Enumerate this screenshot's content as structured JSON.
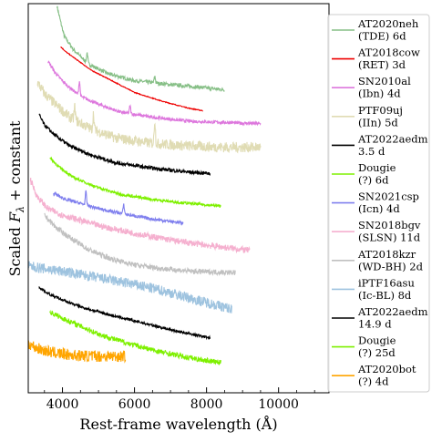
{
  "chart_data": {
    "type": "line",
    "xlabel": "Rest-frame wavelength (Å)",
    "ylabel_parts": [
      "Scaled ",
      "F",
      "λ",
      " + constant"
    ],
    "xlim": [
      3050,
      11400
    ],
    "ylim": [
      -0.3,
      14.6
    ],
    "xticks": [
      4000,
      6000,
      8000,
      10000
    ],
    "xtick_labels": [
      "4000",
      "6000",
      "8000",
      "10000"
    ],
    "yticks_shown": false,
    "grid": false,
    "legend": {
      "position": "right"
    },
    "series": [
      {
        "name": "AT2020neh (TDE) 6d",
        "label_lines": [
          "AT2020neh",
          "(TDE) 6d"
        ],
        "color": "#86bf86",
        "noise": 0.07,
        "x": [
          3850,
          3950,
          4050,
          4300,
          4700,
          5300,
          6000,
          7000,
          7800,
          8500
        ],
        "y": [
          14.5,
          13.9,
          13.35,
          12.85,
          12.3,
          11.9,
          11.65,
          11.5,
          11.4,
          11.3
        ],
        "lines": [
          {
            "x": 4686,
            "amp": 0.4
          },
          {
            "x": 6563,
            "amp": 0.25
          }
        ]
      },
      {
        "name": "AT2018cow (RET) 3d",
        "label_lines": [
          "AT2018cow",
          "(RET) 3d"
        ],
        "color": "#ee0000",
        "noise": 0.015,
        "x": [
          3950,
          4100,
          4400,
          4800,
          5300,
          6000,
          6800,
          7500,
          7900
        ],
        "y": [
          12.95,
          12.75,
          12.45,
          12.05,
          11.7,
          11.2,
          10.85,
          10.6,
          10.5
        ],
        "lines": []
      },
      {
        "name": "SN2010al (Ibn) 4d",
        "label_lines": [
          "SN2010al",
          "(Ibn) 4d"
        ],
        "color": "#dd77dd",
        "noise": 0.06,
        "x": [
          3600,
          3800,
          4100,
          4500,
          5000,
          5600,
          6500,
          7500,
          8500,
          9500
        ],
        "y": [
          12.4,
          11.95,
          11.5,
          11.05,
          10.75,
          10.45,
          10.25,
          10.1,
          10.05,
          10.0
        ],
        "lines": [
          {
            "x": 4471,
            "amp": 0.55
          },
          {
            "x": 5876,
            "amp": 0.3
          }
        ]
      },
      {
        "name": "PTF09uj (IIn) 5d",
        "label_lines": [
          "PTF09uj",
          "(IIn) 5d"
        ],
        "color": "#e0dcb4",
        "noise": 0.2,
        "x": [
          3300,
          3500,
          3800,
          4200,
          4800,
          5500,
          6500,
          7500,
          8500,
          9500
        ],
        "y": [
          11.6,
          11.15,
          10.75,
          10.25,
          9.8,
          9.45,
          9.25,
          9.15,
          9.1,
          9.1
        ],
        "lines": [
          {
            "x": 4340,
            "amp": 0.5
          },
          {
            "x": 4861,
            "amp": 0.6
          },
          {
            "x": 6563,
            "amp": 0.9
          }
        ]
      },
      {
        "name": "AT2022aedm 3.5 d",
        "label_lines": [
          "AT2022aedm",
          "3.5 d"
        ],
        "color": "#000000",
        "noise": 0.07,
        "x": [
          3350,
          3500,
          3800,
          4200,
          4800,
          5500,
          6500,
          7500,
          8100
        ],
        "y": [
          10.35,
          9.95,
          9.55,
          9.15,
          8.8,
          8.5,
          8.3,
          8.15,
          8.1
        ],
        "lines": []
      },
      {
        "name": "Dougie (?) 6d",
        "label_lines": [
          "Dougie",
          "(?) 6d"
        ],
        "color": "#7ef000",
        "noise": 0.05,
        "x": [
          3650,
          3900,
          4300,
          4900,
          5600,
          6500,
          7500,
          8400
        ],
        "y": [
          8.7,
          8.35,
          7.95,
          7.6,
          7.3,
          7.1,
          6.95,
          6.85
        ],
        "lines": []
      },
      {
        "name": "SN2021csp (Icn) 4d",
        "label_lines": [
          "SN2021csp",
          "(Icn) 4d"
        ],
        "color": "#8080ee",
        "noise": 0.06,
        "x": [
          3750,
          4000,
          4500,
          5000,
          5700,
          6500,
          7350
        ],
        "y": [
          7.35,
          7.15,
          6.95,
          6.75,
          6.55,
          6.35,
          6.2
        ],
        "lines": [
          {
            "x": 4650,
            "amp": 0.5
          },
          {
            "x": 5700,
            "amp": 0.35
          }
        ]
      },
      {
        "name": "SN2018bgv (SLSN) 11d",
        "label_lines": [
          "SN2018bgv",
          "(SLSN) 11d"
        ],
        "color": "#f5b0cf",
        "noise": 0.12,
        "x": [
          3100,
          3300,
          3600,
          4000,
          4500,
          5000,
          5500,
          6200,
          7000,
          8000,
          9200
        ],
        "y": [
          7.9,
          7.2,
          6.75,
          6.5,
          6.3,
          6.1,
          5.95,
          5.75,
          5.55,
          5.35,
          5.15
        ],
        "lines": []
      },
      {
        "name": "AT2018kzr (WD-BH) 2d",
        "label_lines": [
          "AT2018kzr",
          "(WD-BH) 2d"
        ],
        "color": "#c0c0c0",
        "noise": 0.1,
        "x": [
          3500,
          3800,
          4200,
          4700,
          5300,
          6000,
          6800,
          7600,
          8800
        ],
        "y": [
          6.5,
          6.05,
          5.65,
          5.2,
          4.85,
          4.6,
          4.45,
          4.35,
          4.3
        ],
        "lines": []
      },
      {
        "name": "iPTF16asu (Ic-BL) 8d",
        "label_lines": [
          "iPTF16asu",
          "(Ic-BL) 8d"
        ],
        "color": "#9ec3df",
        "noise": 0.2,
        "x": [
          3050,
          3500,
          4000,
          4600,
          5200,
          6000,
          6800,
          7600,
          8300,
          8700
        ],
        "y": [
          4.55,
          4.45,
          4.35,
          4.2,
          4.05,
          3.85,
          3.6,
          3.3,
          3.05,
          2.9
        ],
        "lines": []
      },
      {
        "name": "AT2022aedm 14.9 d",
        "label_lines": [
          "AT2022aedm",
          "14.9 d"
        ],
        "color": "#000000",
        "noise": 0.05,
        "x": [
          3350,
          3600,
          4000,
          4600,
          5400,
          6300,
          7200,
          8100
        ],
        "y": [
          3.75,
          3.5,
          3.25,
          2.95,
          2.65,
          2.35,
          2.05,
          1.8
        ],
        "lines": []
      },
      {
        "name": "Dougie (?) 25d",
        "label_lines": [
          "Dougie",
          "(?) 25d"
        ],
        "color": "#7ef000",
        "noise": 0.1,
        "x": [
          3650,
          4000,
          4500,
          5100,
          5800,
          6600,
          7500,
          8400
        ],
        "y": [
          2.8,
          2.55,
          2.25,
          1.9,
          1.6,
          1.3,
          1.05,
          0.85
        ],
        "lines": []
      },
      {
        "name": "AT2020bot (?) 4d",
        "label_lines": [
          "AT2020bot",
          "(?) 4d"
        ],
        "color": "#ffa500",
        "noise": 0.22,
        "x": [
          3050,
          3300,
          3700,
          4200,
          4800,
          5400,
          5750
        ],
        "y": [
          1.6,
          1.4,
          1.25,
          1.15,
          1.1,
          1.1,
          1.1
        ],
        "lines": []
      }
    ]
  }
}
